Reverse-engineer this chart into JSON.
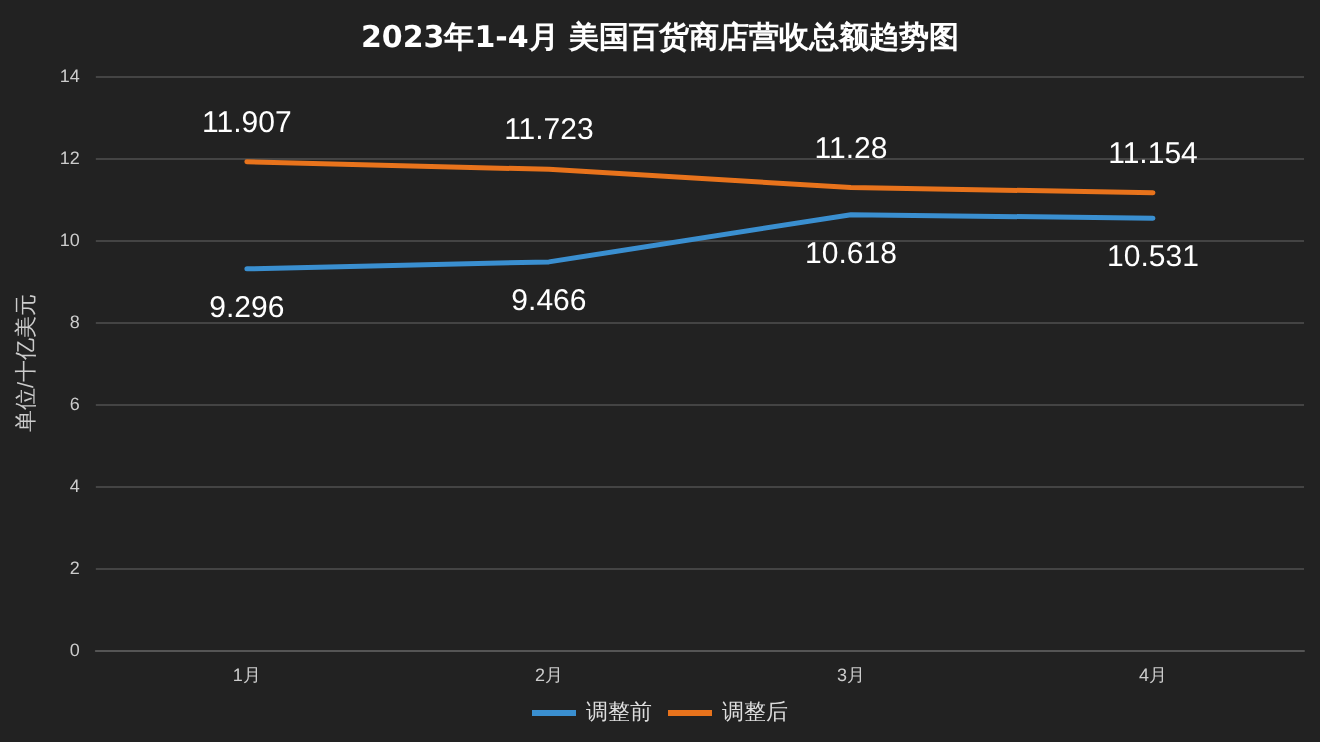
{
  "chart_data": {
    "type": "line",
    "title": "2023年1-4月 美国百货商店营收总额趋势图",
    "ylabel": "单位/十亿美元",
    "categories": [
      "1月",
      "2月",
      "3月",
      "4月"
    ],
    "series": [
      {
        "name": "调整前",
        "color": "#3a8fd0",
        "values": [
          9.296,
          9.466,
          10.618,
          10.531
        ]
      },
      {
        "name": "调整后",
        "color": "#e8731c",
        "values": [
          11.907,
          11.723,
          11.28,
          11.154
        ]
      }
    ],
    "ylim": [
      0,
      14
    ],
    "yticks": [
      0,
      2,
      4,
      6,
      8,
      10,
      12,
      14
    ],
    "grid": "y",
    "legend": "bottom",
    "data_labels": true,
    "marker": "none",
    "line_style": "solid"
  }
}
